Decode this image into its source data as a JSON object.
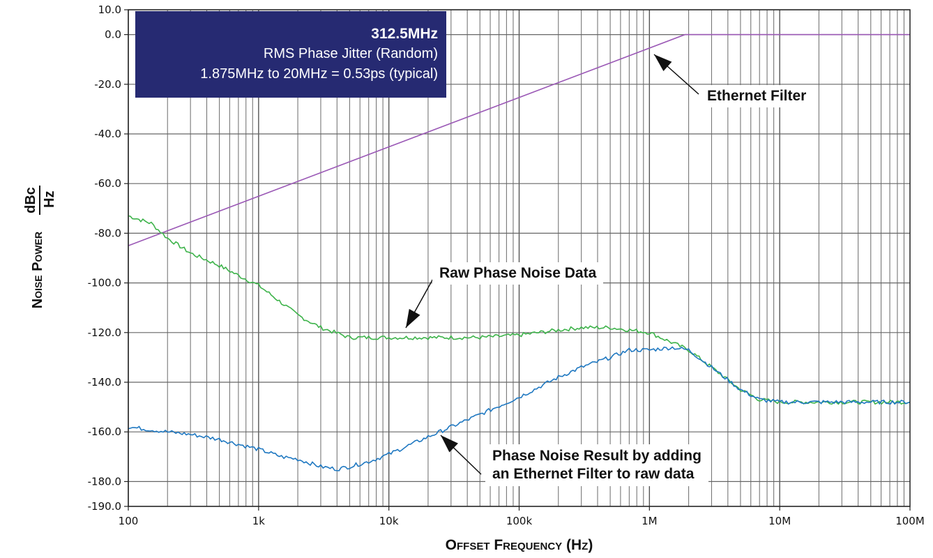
{
  "chart_data": {
    "type": "line",
    "xscale": "log",
    "xlim": [
      100,
      100000000
    ],
    "ylim": [
      -190,
      10
    ],
    "grid": true,
    "xlabel": "Offset Frequency (Hz)",
    "ylabel_main": "Noise Power",
    "ylabel_unit_num": "dBc",
    "ylabel_unit_den": "Hz",
    "xticks": [
      {
        "v": 100,
        "label": "100"
      },
      {
        "v": 1000,
        "label": "1k"
      },
      {
        "v": 10000,
        "label": "10k"
      },
      {
        "v": 100000,
        "label": "100k"
      },
      {
        "v": 1000000,
        "label": "1M"
      },
      {
        "v": 10000000,
        "label": "10M"
      },
      {
        "v": 100000000,
        "label": "100M"
      }
    ],
    "yticks": [
      {
        "v": 10,
        "label": "10.0"
      },
      {
        "v": 0,
        "label": "0.0"
      },
      {
        "v": -20,
        "label": "-20.0"
      },
      {
        "v": -40,
        "label": "-40.0"
      },
      {
        "v": -60,
        "label": "-60.0"
      },
      {
        "v": -80,
        "label": "-80.0"
      },
      {
        "v": -100,
        "label": "-100.0"
      },
      {
        "v": -120,
        "label": "-120.0"
      },
      {
        "v": -140,
        "label": "-140.0"
      },
      {
        "v": -160,
        "label": "-160.0"
      },
      {
        "v": -180,
        "label": "-180.0"
      },
      {
        "v": -190,
        "label": "-190.0"
      }
    ],
    "series": [
      {
        "name": "Ethernet Filter",
        "color": "#9b59b6",
        "x": [
          100,
          1875000,
          100000000
        ],
        "y": [
          -85,
          0,
          0
        ]
      },
      {
        "name": "Raw Phase Noise Data",
        "color": "#3db34a",
        "x": [
          100,
          150,
          200,
          300,
          500,
          700,
          1000,
          1500,
          2000,
          3000,
          5000,
          7000,
          10000,
          20000,
          30000,
          50000,
          100000,
          200000,
          300000,
          500000,
          1000000,
          2000000,
          3000000,
          5000000,
          7000000,
          10000000,
          20000000,
          50000000,
          100000000
        ],
        "y": [
          -73,
          -76,
          -82,
          -88,
          -93,
          -97,
          -101,
          -108,
          -113,
          -118,
          -122,
          -122,
          -122,
          -122,
          -122,
          -122,
          -121,
          -119,
          -118,
          -118,
          -120,
          -127,
          -134,
          -143,
          -147,
          -148,
          -148,
          -148,
          -148
        ]
      },
      {
        "name": "Phase Noise Result by adding an Ethernet Filter to raw data",
        "color": "#1f78c1",
        "x": [
          100,
          200,
          300,
          500,
          700,
          1000,
          1500,
          2000,
          3000,
          4000,
          5000,
          7000,
          10000,
          20000,
          30000,
          50000,
          100000,
          200000,
          300000,
          500000,
          700000,
          1000000,
          1500000,
          2000000,
          3000000,
          5000000,
          7000000,
          10000000,
          20000000,
          50000000,
          100000000
        ],
        "y": [
          -158,
          -160,
          -161,
          -163,
          -165,
          -167,
          -170,
          -171,
          -174,
          -175,
          -174,
          -172,
          -169,
          -162,
          -158,
          -153,
          -146,
          -138,
          -134,
          -130,
          -127,
          -127,
          -126,
          -127,
          -134,
          -143,
          -147,
          -148,
          -148,
          -148,
          -148
        ]
      }
    ]
  },
  "info_box": {
    "frequency": "312.5MHz",
    "line1": "RMS Phase Jitter (Random)",
    "line2": "1.875MHz to 20MHz = 0.53ps (typical)"
  },
  "callouts": {
    "ethernet_filter": "Ethernet Filter",
    "raw_data": "Raw Phase Noise Data",
    "result_line1": "Phase Noise Result by adding",
    "result_line2": "an Ethernet Filter to raw data"
  }
}
